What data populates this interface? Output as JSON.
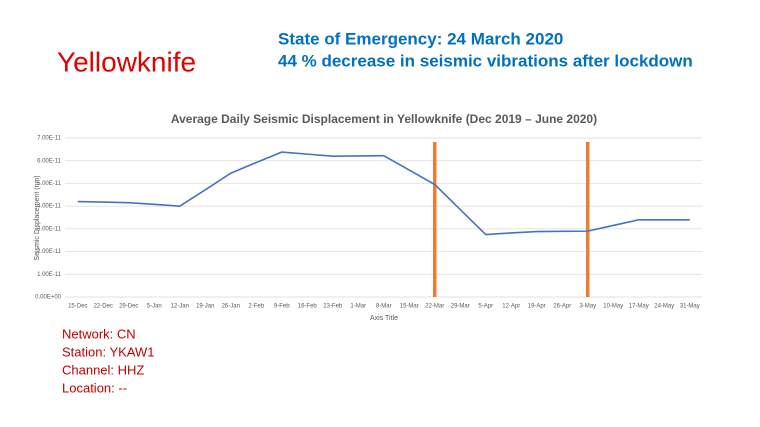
{
  "slide": {
    "title": "Yellowknife",
    "headlines": [
      "State of Emergency: 24 March 2020",
      "44 % decrease in seismic vibrations after lockdown"
    ],
    "info": [
      "Network: CN",
      "Station: YKAW1",
      "Channel: HHZ",
      "Location: --"
    ]
  },
  "chart_data": {
    "type": "line",
    "title": "Average Daily Seismic Displacement in Yellowknife  (Dec 2019 – June 2020)",
    "x_label": "Axis Title",
    "y_label": "Seismic Displacement (nm)",
    "categories": [
      "15-Dec",
      "22-Dec",
      "29-Dec",
      "5-Jan",
      "12-Jan",
      "19-Jan",
      "26-Jan",
      "2-Feb",
      "9-Feb",
      "16-Feb",
      "23-Feb",
      "1-Mar",
      "8-Mar",
      "15-Mar",
      "22-Mar",
      "29-Mar",
      "5-Apr",
      "12-Apr",
      "19-Apr",
      "26-Apr",
      "3-May",
      "10-May",
      "17-May",
      "24-May",
      "31-May"
    ],
    "series": [
      {
        "color": "#4472c4",
        "values": [
          4.2e-11,
          4.18e-11,
          4.15e-11,
          4.08e-11,
          4e-11,
          4.72e-11,
          5.45e-11,
          5.92e-11,
          6.38e-11,
          6.29e-11,
          6.2e-11,
          6.21e-11,
          6.22e-11,
          5.59e-11,
          4.95e-11,
          3.85e-11,
          2.75e-11,
          2.82e-11,
          2.88e-11,
          2.89e-11,
          2.9e-11,
          3.15e-11,
          3.4e-11,
          3.4e-11,
          3.4e-11
        ]
      }
    ],
    "ylim": [
      0,
      7e-11
    ],
    "yticks": [
      {
        "value": 0,
        "label": "0.00E+00"
      },
      {
        "value": 1e-11,
        "label": "1.00E-11"
      },
      {
        "value": 2e-11,
        "label": "2.00E-11"
      },
      {
        "value": 3e-11,
        "label": "3.00E-11"
      },
      {
        "value": 4e-11,
        "label": "4.00E-11"
      },
      {
        "value": 5e-11,
        "label": "5.00E-11"
      },
      {
        "value": 6e-11,
        "label": "6.00E-11"
      },
      {
        "value": 7e-11,
        "label": "7.00E-11"
      }
    ],
    "grid": true,
    "event_lines": {
      "color": "#ed7d31",
      "at": [
        "22-Mar",
        "3-May"
      ]
    }
  }
}
